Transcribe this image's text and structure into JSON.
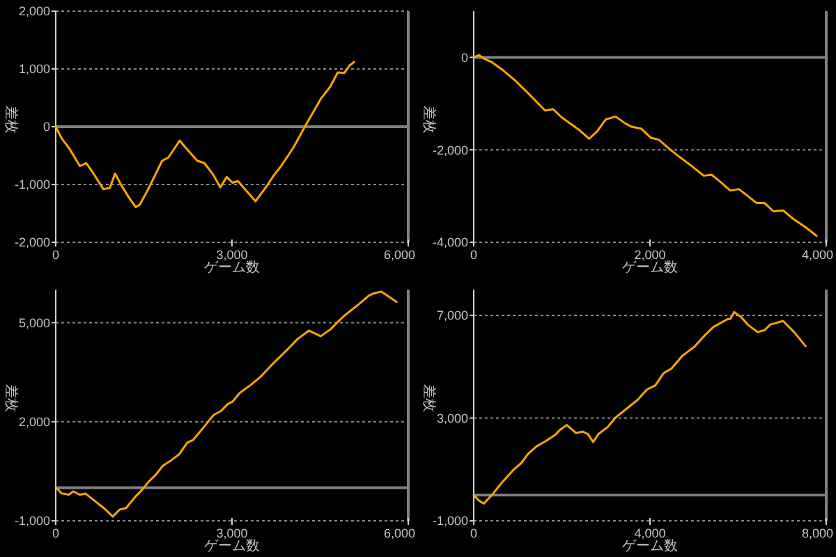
{
  "chart_data": [
    {
      "type": "line",
      "xlabel": "ゲーム数",
      "ylabel": "差枚",
      "color": "#ffa500",
      "grid": "y",
      "xlim": [
        0,
        6000
      ],
      "ylim": [
        -2000,
        2000
      ],
      "xticks": [
        {
          "value": 0,
          "label": "0"
        },
        {
          "value": 3000,
          "label": "3,000"
        },
        {
          "value": 6000,
          "label": "6,000"
        }
      ],
      "yticks": [
        {
          "value": -2000,
          "label": "-2,000"
        },
        {
          "value": -1000,
          "label": "-1,000"
        },
        {
          "value": 0,
          "label": "0"
        },
        {
          "value": 1000,
          "label": "1,000"
        },
        {
          "value": 2000,
          "label": "2,000"
        }
      ],
      "ref_lines": [
        {
          "axis": "y",
          "value": 0,
          "color": "#808080"
        }
      ],
      "x": [
        0,
        100,
        240,
        410,
        520,
        630,
        810,
        920,
        1010,
        1120,
        1250,
        1360,
        1430,
        1580,
        1810,
        1920,
        2110,
        2200,
        2410,
        2530,
        2680,
        2800,
        2910,
        3010,
        3100,
        3210,
        3400,
        3590,
        3720,
        3830,
        4040,
        4240,
        4510,
        4670,
        4800,
        4910,
        5000,
        5080
      ],
      "values": [
        0,
        -200,
        -390,
        -680,
        -630,
        -790,
        -1080,
        -1060,
        -810,
        -1020,
        -1230,
        -1390,
        -1350,
        -1070,
        -590,
        -530,
        -240,
        -350,
        -590,
        -630,
        -830,
        -1050,
        -870,
        -970,
        -940,
        -1070,
        -1290,
        -1030,
        -830,
        -690,
        -370,
        0,
        480,
        690,
        940,
        930,
        1060,
        1120
      ]
    },
    {
      "type": "line",
      "xlabel": "ゲーム数",
      "ylabel": "差枚",
      "color": "#ffa500",
      "grid": "y",
      "xlim": [
        0,
        4000
      ],
      "ylim": [
        -4000,
        1000
      ],
      "xticks": [
        {
          "value": 0,
          "label": "0"
        },
        {
          "value": 2000,
          "label": "2,000"
        },
        {
          "value": 4000,
          "label": "4,000"
        }
      ],
      "yticks": [
        {
          "value": -4000,
          "label": "-4,000"
        },
        {
          "value": -2000,
          "label": "-2,000"
        },
        {
          "value": 0,
          "label": "0"
        }
      ],
      "ref_lines": [
        {
          "axis": "y",
          "value": 0,
          "color": "#808080"
        }
      ],
      "x": [
        0,
        60,
        110,
        210,
        320,
        470,
        630,
        810,
        900,
        1000,
        1190,
        1310,
        1400,
        1500,
        1610,
        1720,
        1790,
        1900,
        2010,
        2100,
        2220,
        2320,
        2480,
        2610,
        2700,
        2810,
        2910,
        3010,
        3110,
        3210,
        3300,
        3400,
        3510,
        3630,
        3770,
        3890
      ],
      "values": [
        0,
        50,
        -20,
        -110,
        -260,
        -500,
        -800,
        -1150,
        -1120,
        -1300,
        -1560,
        -1760,
        -1600,
        -1340,
        -1280,
        -1430,
        -1500,
        -1540,
        -1740,
        -1780,
        -1980,
        -2130,
        -2360,
        -2560,
        -2540,
        -2710,
        -2880,
        -2850,
        -3000,
        -3150,
        -3150,
        -3330,
        -3310,
        -3500,
        -3680,
        -3860
      ]
    },
    {
      "type": "line",
      "xlabel": "ゲーム数",
      "ylabel": "差枚",
      "color": "#ffa500",
      "grid": "y",
      "xlim": [
        0,
        6000
      ],
      "ylim": [
        -1000,
        6000
      ],
      "xticks": [
        {
          "value": 0,
          "label": "0"
        },
        {
          "value": 3000,
          "label": "3,000"
        },
        {
          "value": 6000,
          "label": "6,000"
        }
      ],
      "yticks": [
        {
          "value": -1000,
          "label": "-1,000"
        },
        {
          "value": 2000,
          "label": "2,000"
        },
        {
          "value": 5000,
          "label": "5,000"
        }
      ],
      "ref_lines": [
        {
          "axis": "y",
          "value": 0,
          "color": "#808080"
        }
      ],
      "x": [
        0,
        50,
        100,
        220,
        300,
        410,
        510,
        630,
        830,
        970,
        1090,
        1200,
        1350,
        1460,
        1580,
        1700,
        1820,
        1940,
        2100,
        2240,
        2340,
        2530,
        2690,
        2810,
        2930,
        3010,
        3130,
        3330,
        3480,
        3720,
        3940,
        4120,
        4310,
        4510,
        4670,
        4910,
        5160,
        5330,
        5420,
        5540,
        5660,
        5800
      ],
      "values": [
        0,
        -70,
        -170,
        -210,
        -110,
        -210,
        -180,
        -350,
        -630,
        -870,
        -660,
        -610,
        -280,
        -80,
        180,
        390,
        660,
        800,
        1010,
        1370,
        1450,
        1860,
        2210,
        2320,
        2540,
        2610,
        2870,
        3130,
        3350,
        3800,
        4180,
        4510,
        4760,
        4590,
        4790,
        5210,
        5560,
        5820,
        5890,
        5940,
        5800,
        5630
      ]
    },
    {
      "type": "line",
      "xlabel": "ゲーム数",
      "ylabel": "差枚",
      "color": "#ffa500",
      "grid": "y",
      "xlim": [
        0,
        8000
      ],
      "ylim": [
        -1000,
        8000
      ],
      "xticks": [
        {
          "value": 0,
          "label": "0"
        },
        {
          "value": 4000,
          "label": "4,000"
        },
        {
          "value": 8000,
          "label": "8,000"
        }
      ],
      "yticks": [
        {
          "value": -1000,
          "label": "-1,000"
        },
        {
          "value": 3000,
          "label": "3,000"
        },
        {
          "value": 7000,
          "label": "7,000"
        }
      ],
      "ref_lines": [
        {
          "axis": "y",
          "value": 0,
          "color": "#808080"
        }
      ],
      "x": [
        0,
        110,
        230,
        420,
        630,
        900,
        1080,
        1230,
        1420,
        1640,
        1850,
        1950,
        2110,
        2320,
        2480,
        2590,
        2710,
        2830,
        3040,
        3220,
        3430,
        3720,
        3930,
        4120,
        4310,
        4490,
        4730,
        5010,
        5260,
        5450,
        5750,
        5830,
        5910,
        6070,
        6230,
        6440,
        6600,
        6730,
        7020,
        7280,
        7530
      ],
      "values": [
        0,
        -200,
        -330,
        20,
        470,
        980,
        1250,
        1600,
        1890,
        2110,
        2350,
        2530,
        2730,
        2420,
        2470,
        2380,
        2070,
        2380,
        2650,
        3020,
        3310,
        3710,
        4110,
        4270,
        4750,
        4930,
        5420,
        5780,
        6250,
        6560,
        6840,
        6870,
        7130,
        6930,
        6620,
        6350,
        6420,
        6640,
        6780,
        6330,
        5800
      ]
    }
  ]
}
